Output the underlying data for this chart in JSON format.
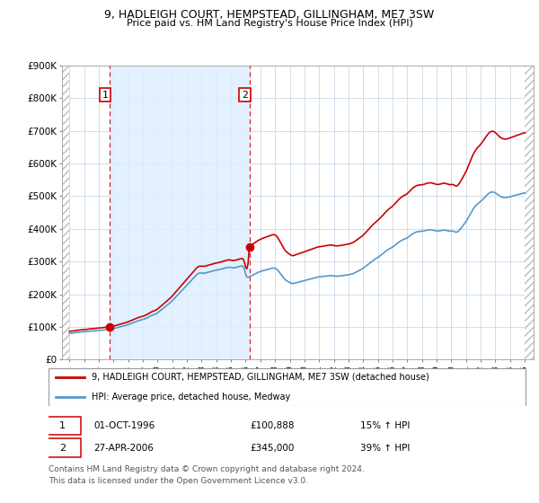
{
  "title": "9, HADLEIGH COURT, HEMPSTEAD, GILLINGHAM, ME7 3SW",
  "subtitle": "Price paid vs. HM Land Registry's House Price Index (HPI)",
  "background_color": "#ffffff",
  "grid_color": "#c8d8e8",
  "line1_color": "#cc0000",
  "line2_color": "#5599cc",
  "fill_color": "#ddeeff",
  "purchase1_price": 100888,
  "purchase2_price": 345000,
  "purchase1_month_idx": 33,
  "purchase2_month_idx": 147,
  "legend_line1": "9, HADLEIGH COURT, HEMPSTEAD, GILLINGHAM, ME7 3SW (detached house)",
  "legend_line2": "HPI: Average price, detached house, Medway",
  "footer3": "Contains HM Land Registry data © Crown copyright and database right 2024.",
  "footer4": "This data is licensed under the Open Government Licence v3.0.",
  "start_year": 1994,
  "start_month": 1,
  "num_months": 373,
  "ylim_max": 900000,
  "ylim_min": 0,
  "vline1_month_idx": 33,
  "vline2_month_idx": 147
}
